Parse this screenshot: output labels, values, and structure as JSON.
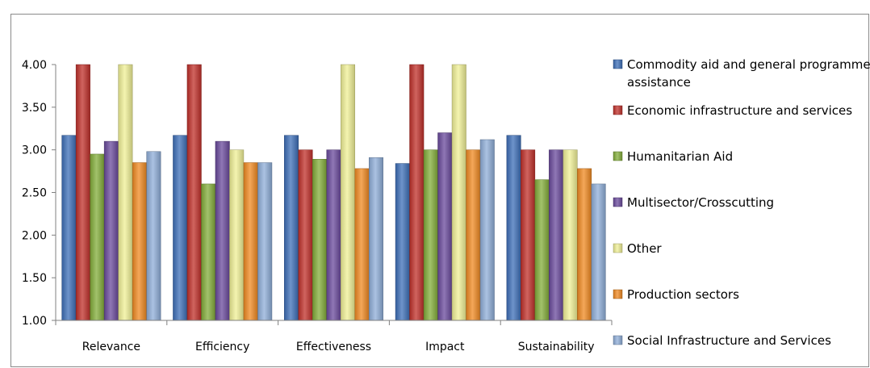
{
  "chart_data": {
    "type": "bar",
    "title": "",
    "xlabel": "",
    "ylabel": "",
    "ylim": [
      1.0,
      4.0
    ],
    "yticks": [
      "1.00",
      "1.50",
      "2.00",
      "2.50",
      "3.00",
      "3.50",
      "4.00"
    ],
    "y_tick_values": [
      1.0,
      1.5,
      2.0,
      2.5,
      3.0,
      3.5,
      4.0
    ],
    "grid": false,
    "legend_position": "right",
    "categories": [
      "Relevance",
      "Efficiency",
      "Effectiveness",
      "Impact",
      "Sustainability"
    ],
    "series": [
      {
        "name": "Commodity aid and general programme assistance",
        "legend_lines": [
          "Commodity aid and general programme",
          "assistance"
        ],
        "color": "#3D6FB8",
        "values": [
          3.17,
          3.17,
          3.17,
          2.84,
          3.17
        ]
      },
      {
        "name": "Economic infrastructure and services",
        "legend_lines": [
          "Economic infrastructure and services"
        ],
        "color": "#C0302A",
        "values": [
          4.0,
          4.0,
          3.0,
          4.0,
          3.0
        ]
      },
      {
        "name": "Humanitarian Aid",
        "legend_lines": [
          "Humanitarian Aid"
        ],
        "color": "#83AD3A",
        "values": [
          2.95,
          2.6,
          2.89,
          3.0,
          2.65
        ]
      },
      {
        "name": "Multisector/Crosscutting",
        "legend_lines": [
          "Multisector/Crosscutting"
        ],
        "color": "#6A4A9C",
        "values": [
          3.1,
          3.1,
          3.0,
          3.2,
          3.0
        ]
      },
      {
        "name": "Other",
        "legend_lines": [
          "Other"
        ],
        "color": "#F0F096",
        "values": [
          4.0,
          3.0,
          4.0,
          4.0,
          3.0
        ]
      },
      {
        "name": "Production sectors",
        "legend_lines": [
          "Production sectors"
        ],
        "color": "#F08A22",
        "values": [
          2.85,
          2.85,
          2.78,
          3.0,
          2.78
        ]
      },
      {
        "name": "Social Infrastructure and Services",
        "legend_lines": [
          "Social Infrastructure and Services"
        ],
        "color": "#8FAED8",
        "values": [
          2.98,
          2.85,
          2.91,
          3.12,
          2.6
        ]
      }
    ]
  }
}
